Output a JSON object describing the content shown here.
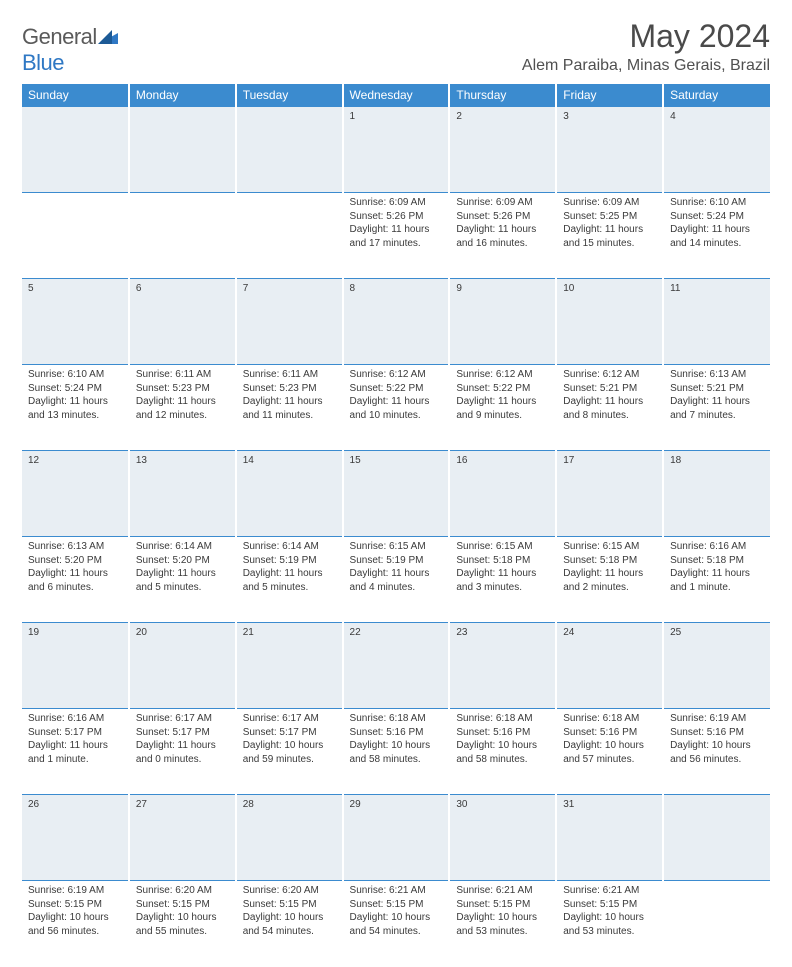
{
  "brand": {
    "name_part1": "General",
    "name_part2": "Blue"
  },
  "title": "May 2024",
  "location": "Alem Paraiba, Minas Gerais, Brazil",
  "colors": {
    "header_bg": "#3b8bcf",
    "daynum_bg": "#e8eef3",
    "rule": "#3b8bcf",
    "text": "#3a3a3a",
    "brand_blue": "#2f78c4"
  },
  "weekdays": [
    "Sunday",
    "Monday",
    "Tuesday",
    "Wednesday",
    "Thursday",
    "Friday",
    "Saturday"
  ],
  "weeks": [
    {
      "nums": [
        "",
        "",
        "",
        "1",
        "2",
        "3",
        "4"
      ],
      "cells": [
        null,
        null,
        null,
        {
          "sunrise": "Sunrise: 6:09 AM",
          "sunset": "Sunset: 5:26 PM",
          "daylight": "Daylight: 11 hours and 17 minutes."
        },
        {
          "sunrise": "Sunrise: 6:09 AM",
          "sunset": "Sunset: 5:26 PM",
          "daylight": "Daylight: 11 hours and 16 minutes."
        },
        {
          "sunrise": "Sunrise: 6:09 AM",
          "sunset": "Sunset: 5:25 PM",
          "daylight": "Daylight: 11 hours and 15 minutes."
        },
        {
          "sunrise": "Sunrise: 6:10 AM",
          "sunset": "Sunset: 5:24 PM",
          "daylight": "Daylight: 11 hours and 14 minutes."
        }
      ]
    },
    {
      "nums": [
        "5",
        "6",
        "7",
        "8",
        "9",
        "10",
        "11"
      ],
      "cells": [
        {
          "sunrise": "Sunrise: 6:10 AM",
          "sunset": "Sunset: 5:24 PM",
          "daylight": "Daylight: 11 hours and 13 minutes."
        },
        {
          "sunrise": "Sunrise: 6:11 AM",
          "sunset": "Sunset: 5:23 PM",
          "daylight": "Daylight: 11 hours and 12 minutes."
        },
        {
          "sunrise": "Sunrise: 6:11 AM",
          "sunset": "Sunset: 5:23 PM",
          "daylight": "Daylight: 11 hours and 11 minutes."
        },
        {
          "sunrise": "Sunrise: 6:12 AM",
          "sunset": "Sunset: 5:22 PM",
          "daylight": "Daylight: 11 hours and 10 minutes."
        },
        {
          "sunrise": "Sunrise: 6:12 AM",
          "sunset": "Sunset: 5:22 PM",
          "daylight": "Daylight: 11 hours and 9 minutes."
        },
        {
          "sunrise": "Sunrise: 6:12 AM",
          "sunset": "Sunset: 5:21 PM",
          "daylight": "Daylight: 11 hours and 8 minutes."
        },
        {
          "sunrise": "Sunrise: 6:13 AM",
          "sunset": "Sunset: 5:21 PM",
          "daylight": "Daylight: 11 hours and 7 minutes."
        }
      ]
    },
    {
      "nums": [
        "12",
        "13",
        "14",
        "15",
        "16",
        "17",
        "18"
      ],
      "cells": [
        {
          "sunrise": "Sunrise: 6:13 AM",
          "sunset": "Sunset: 5:20 PM",
          "daylight": "Daylight: 11 hours and 6 minutes."
        },
        {
          "sunrise": "Sunrise: 6:14 AM",
          "sunset": "Sunset: 5:20 PM",
          "daylight": "Daylight: 11 hours and 5 minutes."
        },
        {
          "sunrise": "Sunrise: 6:14 AM",
          "sunset": "Sunset: 5:19 PM",
          "daylight": "Daylight: 11 hours and 5 minutes."
        },
        {
          "sunrise": "Sunrise: 6:15 AM",
          "sunset": "Sunset: 5:19 PM",
          "daylight": "Daylight: 11 hours and 4 minutes."
        },
        {
          "sunrise": "Sunrise: 6:15 AM",
          "sunset": "Sunset: 5:18 PM",
          "daylight": "Daylight: 11 hours and 3 minutes."
        },
        {
          "sunrise": "Sunrise: 6:15 AM",
          "sunset": "Sunset: 5:18 PM",
          "daylight": "Daylight: 11 hours and 2 minutes."
        },
        {
          "sunrise": "Sunrise: 6:16 AM",
          "sunset": "Sunset: 5:18 PM",
          "daylight": "Daylight: 11 hours and 1 minute."
        }
      ]
    },
    {
      "nums": [
        "19",
        "20",
        "21",
        "22",
        "23",
        "24",
        "25"
      ],
      "cells": [
        {
          "sunrise": "Sunrise: 6:16 AM",
          "sunset": "Sunset: 5:17 PM",
          "daylight": "Daylight: 11 hours and 1 minute."
        },
        {
          "sunrise": "Sunrise: 6:17 AM",
          "sunset": "Sunset: 5:17 PM",
          "daylight": "Daylight: 11 hours and 0 minutes."
        },
        {
          "sunrise": "Sunrise: 6:17 AM",
          "sunset": "Sunset: 5:17 PM",
          "daylight": "Daylight: 10 hours and 59 minutes."
        },
        {
          "sunrise": "Sunrise: 6:18 AM",
          "sunset": "Sunset: 5:16 PM",
          "daylight": "Daylight: 10 hours and 58 minutes."
        },
        {
          "sunrise": "Sunrise: 6:18 AM",
          "sunset": "Sunset: 5:16 PM",
          "daylight": "Daylight: 10 hours and 58 minutes."
        },
        {
          "sunrise": "Sunrise: 6:18 AM",
          "sunset": "Sunset: 5:16 PM",
          "daylight": "Daylight: 10 hours and 57 minutes."
        },
        {
          "sunrise": "Sunrise: 6:19 AM",
          "sunset": "Sunset: 5:16 PM",
          "daylight": "Daylight: 10 hours and 56 minutes."
        }
      ]
    },
    {
      "nums": [
        "26",
        "27",
        "28",
        "29",
        "30",
        "31",
        ""
      ],
      "cells": [
        {
          "sunrise": "Sunrise: 6:19 AM",
          "sunset": "Sunset: 5:15 PM",
          "daylight": "Daylight: 10 hours and 56 minutes."
        },
        {
          "sunrise": "Sunrise: 6:20 AM",
          "sunset": "Sunset: 5:15 PM",
          "daylight": "Daylight: 10 hours and 55 minutes."
        },
        {
          "sunrise": "Sunrise: 6:20 AM",
          "sunset": "Sunset: 5:15 PM",
          "daylight": "Daylight: 10 hours and 54 minutes."
        },
        {
          "sunrise": "Sunrise: 6:21 AM",
          "sunset": "Sunset: 5:15 PM",
          "daylight": "Daylight: 10 hours and 54 minutes."
        },
        {
          "sunrise": "Sunrise: 6:21 AM",
          "sunset": "Sunset: 5:15 PM",
          "daylight": "Daylight: 10 hours and 53 minutes."
        },
        {
          "sunrise": "Sunrise: 6:21 AM",
          "sunset": "Sunset: 5:15 PM",
          "daylight": "Daylight: 10 hours and 53 minutes."
        },
        null
      ]
    }
  ]
}
